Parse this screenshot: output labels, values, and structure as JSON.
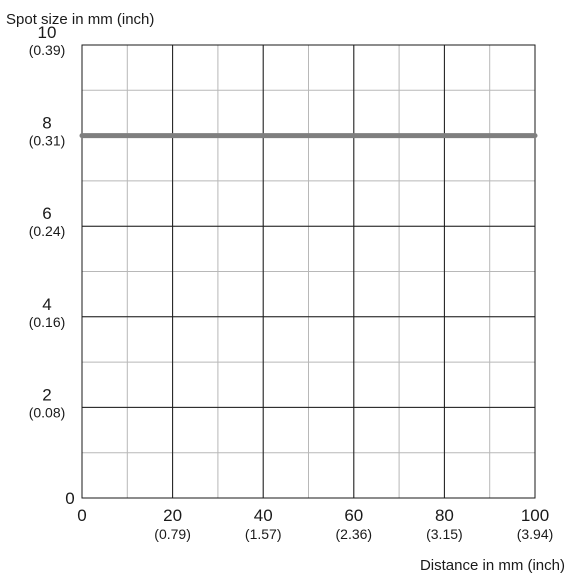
{
  "chart_data": {
    "type": "line",
    "ylabel": "Spot size in mm (inch)",
    "xlabel": "Distance in mm (inch)",
    "xlim": [
      0,
      100
    ],
    "ylim": [
      0,
      10
    ],
    "x_ticks": [
      {
        "value": 0,
        "label": "0",
        "sublabel": ""
      },
      {
        "value": 20,
        "label": "20",
        "sublabel": "(0.79)"
      },
      {
        "value": 40,
        "label": "40",
        "sublabel": "(1.57)"
      },
      {
        "value": 60,
        "label": "60",
        "sublabel": "(2.36)"
      },
      {
        "value": 80,
        "label": "80",
        "sublabel": "(3.15)"
      },
      {
        "value": 100,
        "label": "100",
        "sublabel": "(3.94)"
      }
    ],
    "y_ticks": [
      {
        "value": 0,
        "label": "0",
        "sublabel": ""
      },
      {
        "value": 2,
        "label": "2",
        "sublabel": "(0.08)"
      },
      {
        "value": 4,
        "label": "4",
        "sublabel": "(0.16)"
      },
      {
        "value": 6,
        "label": "6",
        "sublabel": "(0.24)"
      },
      {
        "value": 8,
        "label": "8",
        "sublabel": "(0.31)"
      },
      {
        "value": 10,
        "label": "10",
        "sublabel": "(0.39)"
      }
    ],
    "grid": true,
    "minor_grid_step": {
      "x": 10,
      "y": 1
    },
    "series": [
      {
        "x": [
          0,
          100
        ],
        "y": [
          8,
          8
        ],
        "color": "#7f7f7f"
      }
    ]
  }
}
